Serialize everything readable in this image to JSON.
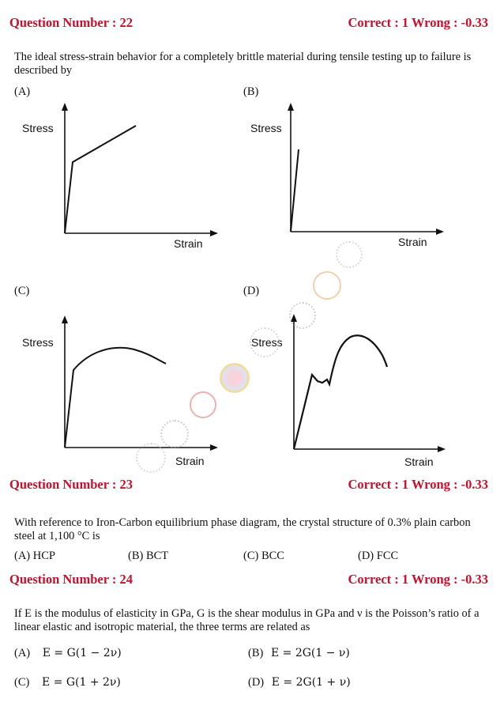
{
  "q22": {
    "number": "Question Number : 22",
    "marks": "Correct : 1  Wrong : -0.33",
    "text": "The ideal stress-strain behavior for a completely brittle material during tensile testing up to failure  is described by",
    "options": [
      {
        "label": "(A)",
        "ylabel": "Stress",
        "xlabel": "Strain",
        "shape": "linear-then-strain-hardening"
      },
      {
        "label": "(B)",
        "ylabel": "Stress",
        "xlabel": "Strain",
        "shape": "linear-elastic-only"
      },
      {
        "label": "(C)",
        "ylabel": "Stress",
        "xlabel": "Strain",
        "shape": "linear-then-smooth-hump"
      },
      {
        "label": "(D)",
        "ylabel": "Stress",
        "xlabel": "Strain",
        "shape": "yield-point-then-hump"
      }
    ]
  },
  "q23": {
    "number": "Question Number : 23",
    "marks": "Correct : 1  Wrong : -0.33",
    "text": "With reference to Iron-Carbon equilibrium phase diagram, the crystal structure of 0.3% plain carbon steel at 1,100 °C is",
    "options": [
      "(A) HCP",
      "(B) BCT",
      "(C) BCC",
      "(D) FCC"
    ]
  },
  "q24": {
    "number": "Question Number : 24",
    "marks": "Correct : 1  Wrong : -0.33",
    "text": "If E is the modulus of elasticity in GPa, G is the shear modulus in GPa and ν is the Poisson’s ratio of a linear elastic and isotropic material, the three terms are related as",
    "options": [
      {
        "label": "(A)",
        "formula": "E = G(1 − 2ν)"
      },
      {
        "label": "(B)",
        "formula": "E = 2G(1 − ν)"
      },
      {
        "label": "(C)",
        "formula": "E = G(1 + 2ν)"
      },
      {
        "label": "(D)",
        "formula": "E = 2G(1 + ν)"
      }
    ]
  },
  "colors": {
    "heading": "#c8102e",
    "text": "#111111"
  }
}
